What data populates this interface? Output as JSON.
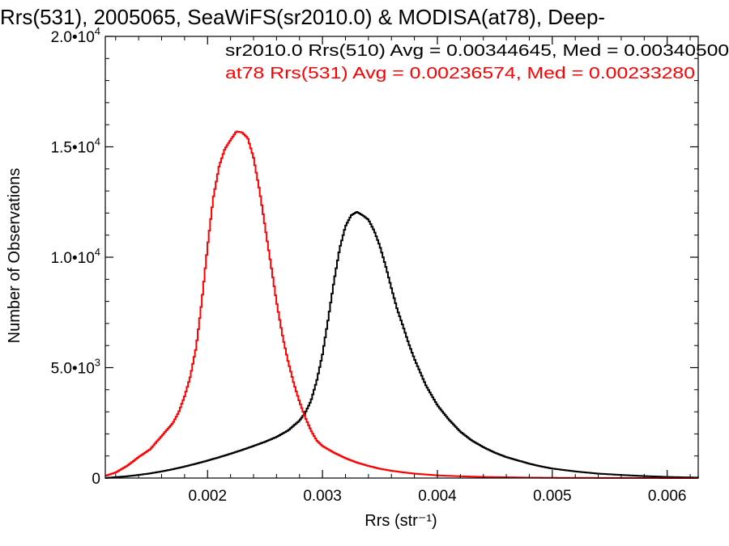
{
  "chart_data": {
    "type": "line",
    "title": "Rrs(531), 2005065, SeaWiFS(sr2010.0) & MODISA(at78), Deep-",
    "xlabel": "Rrs (str⁻¹)",
    "ylabel": "Number of Observations",
    "xlim": [
      0.00111,
      0.00627
    ],
    "ylim": [
      0,
      20000
    ],
    "x_ticks": [
      {
        "value": 0.002,
        "label": "0.002"
      },
      {
        "value": 0.003,
        "label": "0.003"
      },
      {
        "value": 0.004,
        "label": "0.004"
      },
      {
        "value": 0.005,
        "label": "0.005"
      },
      {
        "value": 0.006,
        "label": "0.006"
      }
    ],
    "y_ticks": [
      {
        "value": 0,
        "mant": "0",
        "exp": ""
      },
      {
        "value": 5000,
        "mant": "5.0•10",
        "exp": "3"
      },
      {
        "value": 10000,
        "mant": "1.0•10",
        "exp": "4"
      },
      {
        "value": 15000,
        "mant": "1.5•10",
        "exp": "4"
      },
      {
        "value": 20000,
        "mant": "2.0•10",
        "exp": "4"
      }
    ],
    "annotations": [
      {
        "text": "sr2010.0 Rrs(510) Avg = 0.00344645, Med = 0.00340500",
        "color": "#000000"
      },
      {
        "text": "at78 Rrs(531) Avg = 0.00236574, Med = 0.00233280",
        "color": "#ff0000"
      }
    ],
    "series": [
      {
        "color": "#000000",
        "x": [
          0.00111,
          0.0012,
          0.0013,
          0.0014,
          0.0015,
          0.0016,
          0.0017,
          0.0018,
          0.0019,
          0.002,
          0.0021,
          0.0022,
          0.0023,
          0.0024,
          0.0025,
          0.0026,
          0.0027,
          0.0028,
          0.00285,
          0.0029,
          0.00295,
          0.003,
          0.00305,
          0.0031,
          0.00315,
          0.0032,
          0.00325,
          0.0033,
          0.00335,
          0.0034,
          0.00345,
          0.0035,
          0.00355,
          0.0036,
          0.00365,
          0.0037,
          0.00375,
          0.0038,
          0.00385,
          0.0039,
          0.004,
          0.0041,
          0.0042,
          0.0043,
          0.0044,
          0.0045,
          0.0046,
          0.0047,
          0.0048,
          0.0049,
          0.005,
          0.0052,
          0.0054,
          0.0056,
          0.0058,
          0.006,
          0.00627
        ],
        "y": [
          0,
          40,
          80,
          140,
          210,
          300,
          400,
          520,
          650,
          790,
          940,
          1100,
          1270,
          1450,
          1640,
          1860,
          2150,
          2600,
          2950,
          3500,
          4400,
          5600,
          7200,
          8900,
          10400,
          11400,
          11900,
          12050,
          11900,
          11700,
          11200,
          10500,
          9600,
          8600,
          7650,
          6900,
          6100,
          5400,
          4800,
          4200,
          3300,
          2650,
          2100,
          1700,
          1400,
          1150,
          950,
          800,
          650,
          530,
          430,
          300,
          200,
          140,
          90,
          50,
          20
        ]
      },
      {
        "color": "#ff0000",
        "x": [
          0.00111,
          0.0012,
          0.0013,
          0.0014,
          0.0015,
          0.0016,
          0.0017,
          0.00175,
          0.0018,
          0.00185,
          0.0019,
          0.00195,
          0.002,
          0.00205,
          0.0021,
          0.00215,
          0.0022,
          0.00225,
          0.0023,
          0.00235,
          0.0024,
          0.00245,
          0.0025,
          0.00255,
          0.0026,
          0.00265,
          0.0027,
          0.00275,
          0.0028,
          0.00285,
          0.0029,
          0.00295,
          0.003,
          0.0031,
          0.0032,
          0.0033,
          0.0034,
          0.0035,
          0.0036,
          0.0037,
          0.0038,
          0.0039,
          0.004,
          0.0042,
          0.0044,
          0.0046,
          0.0048,
          0.005,
          0.0055,
          0.006,
          0.00627
        ],
        "y": [
          100,
          250,
          550,
          950,
          1300,
          1900,
          2500,
          3000,
          3700,
          4600,
          5900,
          8000,
          10500,
          12700,
          14100,
          14900,
          15300,
          15700,
          15650,
          15400,
          14500,
          13100,
          11400,
          9700,
          8000,
          6500,
          5300,
          4300,
          3450,
          2750,
          2150,
          1700,
          1450,
          1150,
          900,
          700,
          550,
          420,
          330,
          260,
          200,
          160,
          120,
          80,
          50,
          35,
          20,
          12,
          5,
          2,
          0
        ]
      }
    ]
  }
}
